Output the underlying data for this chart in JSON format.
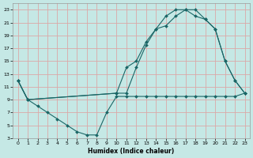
{
  "xlabel": "Humidex (Indice chaleur)",
  "bg_color": "#c5e8e5",
  "grid_color": "#dba8a8",
  "line_color": "#1a6666",
  "xlim": [
    -0.5,
    23.5
  ],
  "ylim": [
    3,
    24
  ],
  "xticks": [
    0,
    1,
    2,
    3,
    4,
    5,
    6,
    7,
    8,
    9,
    10,
    11,
    12,
    13,
    14,
    15,
    16,
    17,
    18,
    19,
    20,
    21,
    22,
    23
  ],
  "yticks": [
    3,
    5,
    7,
    9,
    11,
    13,
    15,
    17,
    19,
    21,
    23
  ],
  "line1_x": [
    0,
    1,
    2,
    3,
    4,
    5,
    6,
    7,
    8,
    9,
    10,
    11,
    12,
    13,
    14,
    15,
    16,
    17,
    18,
    19,
    20,
    21,
    22,
    23
  ],
  "line1_y": [
    12,
    9,
    8,
    7,
    6,
    5,
    4,
    3.5,
    3.5,
    7,
    9.5,
    9.5,
    9.5,
    9.5,
    9.5,
    9.5,
    9.5,
    9.5,
    9.5,
    9.5,
    9.5,
    9.5,
    9.5,
    10
  ],
  "line2_x": [
    0,
    1,
    10,
    11,
    12,
    13,
    14,
    15,
    16,
    17,
    18,
    19,
    20,
    21,
    22,
    23
  ],
  "line2_y": [
    12,
    9,
    10,
    14,
    15,
    18,
    20,
    20.5,
    22,
    23,
    22,
    21.5,
    20,
    15,
    12,
    10
  ],
  "line3_x": [
    0,
    1,
    10,
    11,
    12,
    13,
    14,
    15,
    16,
    17,
    18,
    19,
    20,
    21,
    22,
    23
  ],
  "line3_y": [
    12,
    9,
    10,
    10,
    14,
    17.5,
    20,
    22,
    23,
    23,
    23,
    21.5,
    20,
    15,
    12,
    10
  ]
}
